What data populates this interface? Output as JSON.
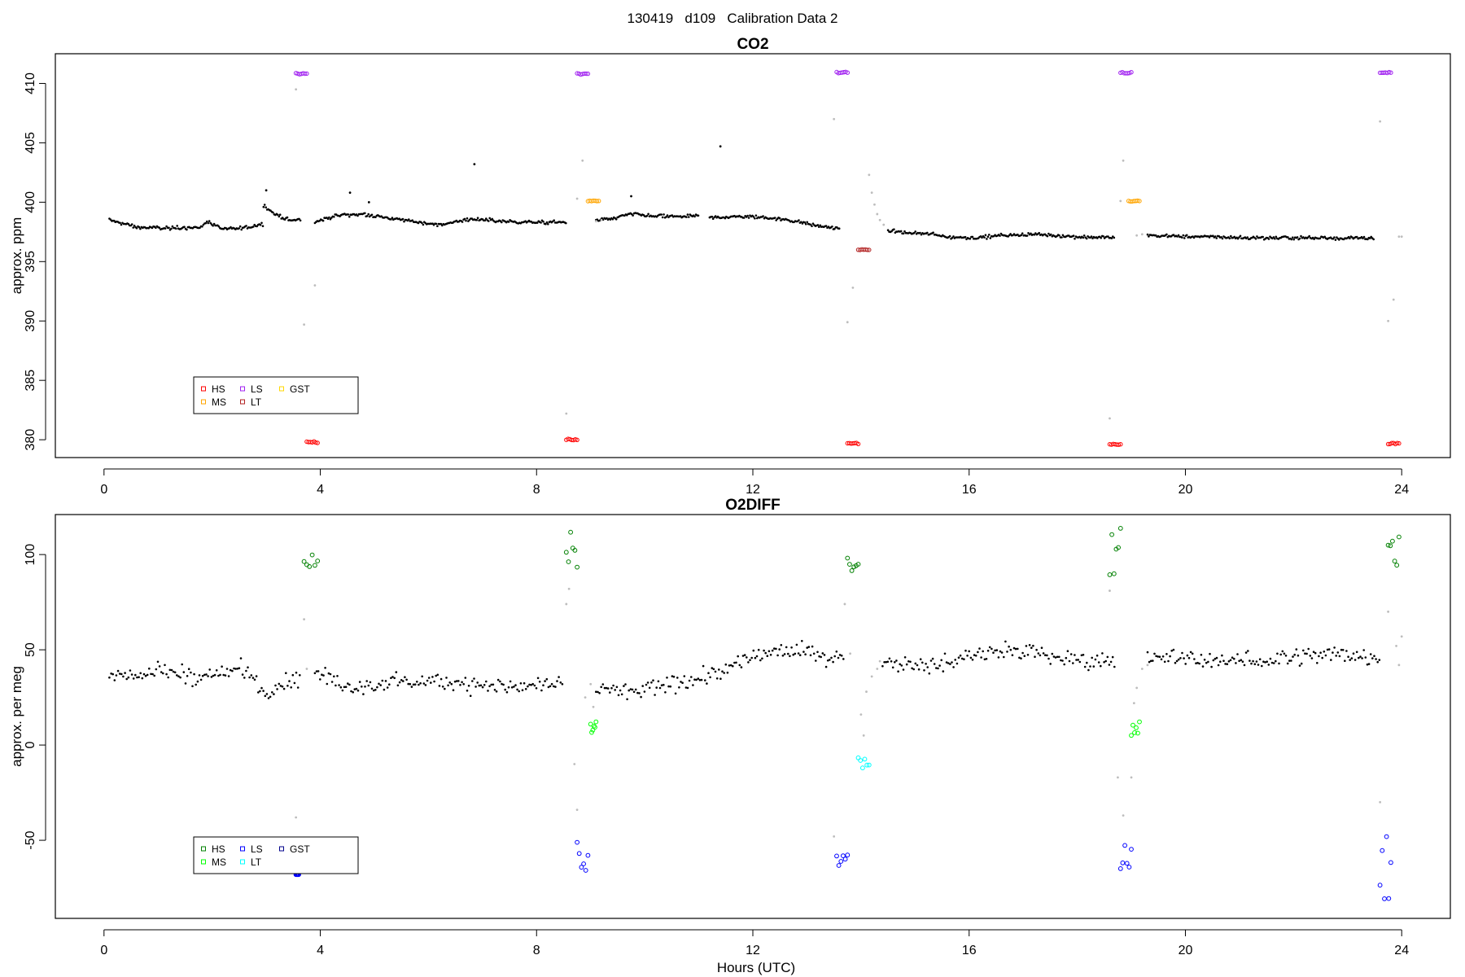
{
  "page": {
    "title": "130419   d109   Calibration Data 2"
  },
  "colors": {
    "sample": "#000000",
    "flushing": "#bdbdbd",
    "co2": {
      "HS": "#ff0000",
      "MS": "#ffa500",
      "LS": "#a020f0",
      "LT": "#b22222",
      "GST": "#ffd700"
    },
    "o2": {
      "HS": "#008000",
      "MS": "#00ff00",
      "LS": "#0000ff",
      "LT": "#00ffff",
      "GST": "#00008b"
    }
  },
  "chart_data": [
    {
      "type": "scatter",
      "title": "CO2",
      "xlabel": "",
      "ylabel": "approx. ppm",
      "xlim": [
        -0.9,
        24.9
      ],
      "ylim": [
        378.5,
        412.5
      ],
      "xticks": [
        0,
        4,
        8,
        12,
        16,
        20,
        24
      ],
      "yticks": [
        380,
        385,
        390,
        395,
        400,
        405,
        410
      ],
      "legend": {
        "position": "bottom-left",
        "entries": [
          "HS",
          "MS",
          "LS",
          "LT",
          "GST"
        ]
      },
      "baseline_segments": [
        {
          "x": [
            0.1,
            0.6,
            1.2,
            1.8,
            1.9,
            2.2,
            2.7,
            2.95
          ],
          "y": [
            398.5,
            397.9,
            397.8,
            397.9,
            398.4,
            397.7,
            397.9,
            398.2
          ]
        },
        {
          "x": [
            2.95,
            3.1,
            3.3,
            3.5,
            3.65
          ],
          "y": [
            399.8,
            399.2,
            398.7,
            398.4,
            398.6
          ]
        },
        {
          "x": [
            3.9,
            4.3,
            4.8,
            5.5,
            6.2,
            6.8,
            7.3,
            8.0,
            8.55
          ],
          "y": [
            398.3,
            398.9,
            399.0,
            398.5,
            398.1,
            398.6,
            398.4,
            398.3,
            398.3
          ]
        },
        {
          "x": [
            9.1,
            9.4,
            9.75,
            10.2,
            10.6,
            11.0
          ],
          "y": [
            398.5,
            398.6,
            399.0,
            398.8,
            398.8,
            398.8
          ]
        },
        {
          "x": [
            11.2,
            11.8,
            12.3,
            12.8,
            13.2,
            13.6
          ],
          "y": [
            398.7,
            398.8,
            398.7,
            398.4,
            398.0,
            397.8
          ]
        },
        {
          "x": [
            14.5,
            14.9,
            15.3,
            15.6,
            16.0,
            16.6,
            17.2,
            18.0,
            18.7
          ],
          "y": [
            397.6,
            397.4,
            397.3,
            397.1,
            397.0,
            397.2,
            397.3,
            397.1,
            397.0
          ]
        },
        {
          "x": [
            19.3,
            20.2,
            21.2,
            22.3,
            23.5
          ],
          "y": [
            397.2,
            397.1,
            397.0,
            397.0,
            397.0
          ]
        }
      ],
      "spikes": [
        {
          "x": 3.0,
          "y": 401.0
        },
        {
          "x": 4.55,
          "y": 400.8
        },
        {
          "x": 4.9,
          "y": 400.0
        },
        {
          "x": 6.85,
          "y": 403.2
        },
        {
          "x": 9.75,
          "y": 400.5
        },
        {
          "x": 11.4,
          "y": 404.7
        }
      ],
      "flushing_points": [
        {
          "x": 3.55,
          "y": 409.5
        },
        {
          "x": 3.7,
          "y": 389.7
        },
        {
          "x": 3.9,
          "y": 393.0
        },
        {
          "x": 8.55,
          "y": 382.2
        },
        {
          "x": 8.75,
          "y": 400.3
        },
        {
          "x": 8.85,
          "y": 403.5
        },
        {
          "x": 9.1,
          "y": 398.4
        },
        {
          "x": 9.2,
          "y": 398.5
        },
        {
          "x": 13.5,
          "y": 407.0
        },
        {
          "x": 13.75,
          "y": 389.9
        },
        {
          "x": 13.85,
          "y": 392.8
        },
        {
          "x": 14.15,
          "y": 402.3
        },
        {
          "x": 14.2,
          "y": 400.8
        },
        {
          "x": 14.25,
          "y": 399.8
        },
        {
          "x": 14.3,
          "y": 399.0
        },
        {
          "x": 14.35,
          "y": 398.5
        },
        {
          "x": 14.42,
          "y": 398.1
        },
        {
          "x": 18.6,
          "y": 381.8
        },
        {
          "x": 18.8,
          "y": 400.1
        },
        {
          "x": 18.85,
          "y": 403.5
        },
        {
          "x": 19.1,
          "y": 397.2
        },
        {
          "x": 19.2,
          "y": 397.3
        },
        {
          "x": 23.6,
          "y": 406.8
        },
        {
          "x": 23.75,
          "y": 390.0
        },
        {
          "x": 23.85,
          "y": 391.8
        },
        {
          "x": 23.95,
          "y": 397.1
        },
        {
          "x": 24.0,
          "y": 397.1
        }
      ],
      "calibration_clusters": [
        {
          "std": "LS",
          "x0": 3.55,
          "x1": 3.75,
          "y": 410.8
        },
        {
          "std": "HS",
          "x0": 3.75,
          "x1": 3.95,
          "y": 379.8
        },
        {
          "std": "HS",
          "x0": 8.55,
          "x1": 8.75,
          "y": 380.0
        },
        {
          "std": "LS",
          "x0": 8.75,
          "x1": 8.95,
          "y": 410.8
        },
        {
          "std": "MS",
          "x0": 8.95,
          "x1": 9.15,
          "y": 400.1
        },
        {
          "std": "LS",
          "x0": 13.55,
          "x1": 13.75,
          "y": 410.9
        },
        {
          "std": "HS",
          "x0": 13.75,
          "x1": 13.95,
          "y": 379.7
        },
        {
          "std": "LT",
          "x0": 13.95,
          "x1": 14.15,
          "y": 396.0
        },
        {
          "std": "HS",
          "x0": 18.6,
          "x1": 18.8,
          "y": 379.6
        },
        {
          "std": "LS",
          "x0": 18.8,
          "x1": 19.0,
          "y": 410.9
        },
        {
          "std": "MS",
          "x0": 18.95,
          "x1": 19.15,
          "y": 400.1
        },
        {
          "std": "LS",
          "x0": 23.6,
          "x1": 23.8,
          "y": 410.9
        },
        {
          "std": "HS",
          "x0": 23.75,
          "x1": 23.95,
          "y": 379.7
        }
      ]
    },
    {
      "type": "scatter",
      "title": "O2DIFF",
      "xlabel": "Hours (UTC)",
      "ylabel": "approx. per meg",
      "xlim": [
        -0.9,
        24.9
      ],
      "ylim": [
        -91,
        121
      ],
      "xticks": [
        0,
        4,
        8,
        12,
        16,
        20,
        24
      ],
      "yticks": [
        -50,
        0,
        50,
        100
      ],
      "legend": {
        "position": "bottom-left",
        "entries": [
          "HS",
          "MS",
          "LS",
          "LT",
          "GST"
        ]
      },
      "baseline_segments": [
        {
          "x": [
            0.1,
            1.0,
            2.0,
            2.5,
            2.8,
            3.0,
            3.2,
            3.65
          ],
          "y": [
            37,
            38,
            36,
            40,
            34,
            27,
            33,
            36
          ]
        },
        {
          "x": [
            3.9,
            4.5,
            5.5,
            6.5,
            7.5,
            8.5
          ],
          "y": [
            38,
            31,
            34,
            33,
            30,
            31
          ]
        },
        {
          "x": [
            9.1,
            9.7,
            10.3,
            10.8,
            11.4,
            12.0,
            12.5,
            13.0,
            13.7
          ],
          "y": [
            30,
            27,
            30,
            35,
            38,
            46,
            50,
            48,
            46
          ]
        },
        {
          "x": [
            14.4,
            15.0,
            15.5,
            16.0,
            16.5,
            17.2,
            17.8,
            18.3,
            18.7
          ],
          "y": [
            44,
            43,
            42,
            47,
            50,
            48,
            45,
            44,
            46
          ]
        },
        {
          "x": [
            19.3,
            20.0,
            21.0,
            22.0,
            23.0,
            23.6
          ],
          "y": [
            46,
            45,
            44,
            46,
            48,
            45
          ]
        }
      ],
      "flushing_points": [
        {
          "x": 3.55,
          "y": -38
        },
        {
          "x": 3.7,
          "y": 66
        },
        {
          "x": 3.75,
          "y": 40
        },
        {
          "x": 8.55,
          "y": 74
        },
        {
          "x": 8.6,
          "y": 82
        },
        {
          "x": 8.75,
          "y": -34
        },
        {
          "x": 8.7,
          "y": -10
        },
        {
          "x": 8.9,
          "y": 25
        },
        {
          "x": 9.0,
          "y": 32
        },
        {
          "x": 9.05,
          "y": 20
        },
        {
          "x": 13.5,
          "y": -48
        },
        {
          "x": 13.7,
          "y": 74
        },
        {
          "x": 13.8,
          "y": 48
        },
        {
          "x": 14.0,
          "y": 16
        },
        {
          "x": 14.05,
          "y": 5
        },
        {
          "x": 14.1,
          "y": 28
        },
        {
          "x": 14.2,
          "y": 36
        },
        {
          "x": 14.3,
          "y": 40
        },
        {
          "x": 14.35,
          "y": 44
        },
        {
          "x": 18.6,
          "y": 81
        },
        {
          "x": 18.75,
          "y": -17
        },
        {
          "x": 18.85,
          "y": -37
        },
        {
          "x": 19.0,
          "y": -17
        },
        {
          "x": 19.05,
          "y": 22
        },
        {
          "x": 19.1,
          "y": 30
        },
        {
          "x": 19.2,
          "y": 40
        },
        {
          "x": 19.3,
          "y": 42
        },
        {
          "x": 23.6,
          "y": -30
        },
        {
          "x": 23.75,
          "y": 70
        },
        {
          "x": 23.9,
          "y": 52
        },
        {
          "x": 23.95,
          "y": 42
        },
        {
          "x": 24.0,
          "y": 57
        }
      ],
      "calibration_clusters": [
        {
          "std": "HS",
          "x0": 3.7,
          "x1": 3.95,
          "ymin": 93,
          "ymax": 102
        },
        {
          "std": "LS",
          "x0": 3.55,
          "x1": 3.6,
          "ymin": -68,
          "ymax": -68
        },
        {
          "std": "HS",
          "x0": 8.55,
          "x1": 8.75,
          "ymin": 91,
          "ymax": 114
        },
        {
          "std": "LS",
          "x0": 8.75,
          "x1": 8.95,
          "ymin": -66,
          "ymax": -46
        },
        {
          "std": "MS",
          "x0": 9.0,
          "x1": 9.1,
          "ymin": 6,
          "ymax": 13
        },
        {
          "std": "LS",
          "x0": 13.55,
          "x1": 13.75,
          "ymin": -64,
          "ymax": -57
        },
        {
          "std": "HS",
          "x0": 13.75,
          "x1": 13.95,
          "ymin": 90,
          "ymax": 107
        },
        {
          "std": "LT",
          "x0": 13.95,
          "x1": 14.15,
          "ymin": -14,
          "ymax": -5
        },
        {
          "std": "HS",
          "x0": 18.6,
          "x1": 18.8,
          "ymin": 89,
          "ymax": 114
        },
        {
          "std": "LS",
          "x0": 18.8,
          "x1": 19.0,
          "ymin": -72,
          "ymax": -48
        },
        {
          "std": "MS",
          "x0": 19.0,
          "x1": 19.15,
          "ymin": 5,
          "ymax": 13
        },
        {
          "std": "LS",
          "x0": 23.6,
          "x1": 23.8,
          "ymin": -84,
          "ymax": -44
        },
        {
          "std": "HS",
          "x0": 23.75,
          "x1": 23.95,
          "ymin": 90,
          "ymax": 110
        }
      ]
    }
  ]
}
